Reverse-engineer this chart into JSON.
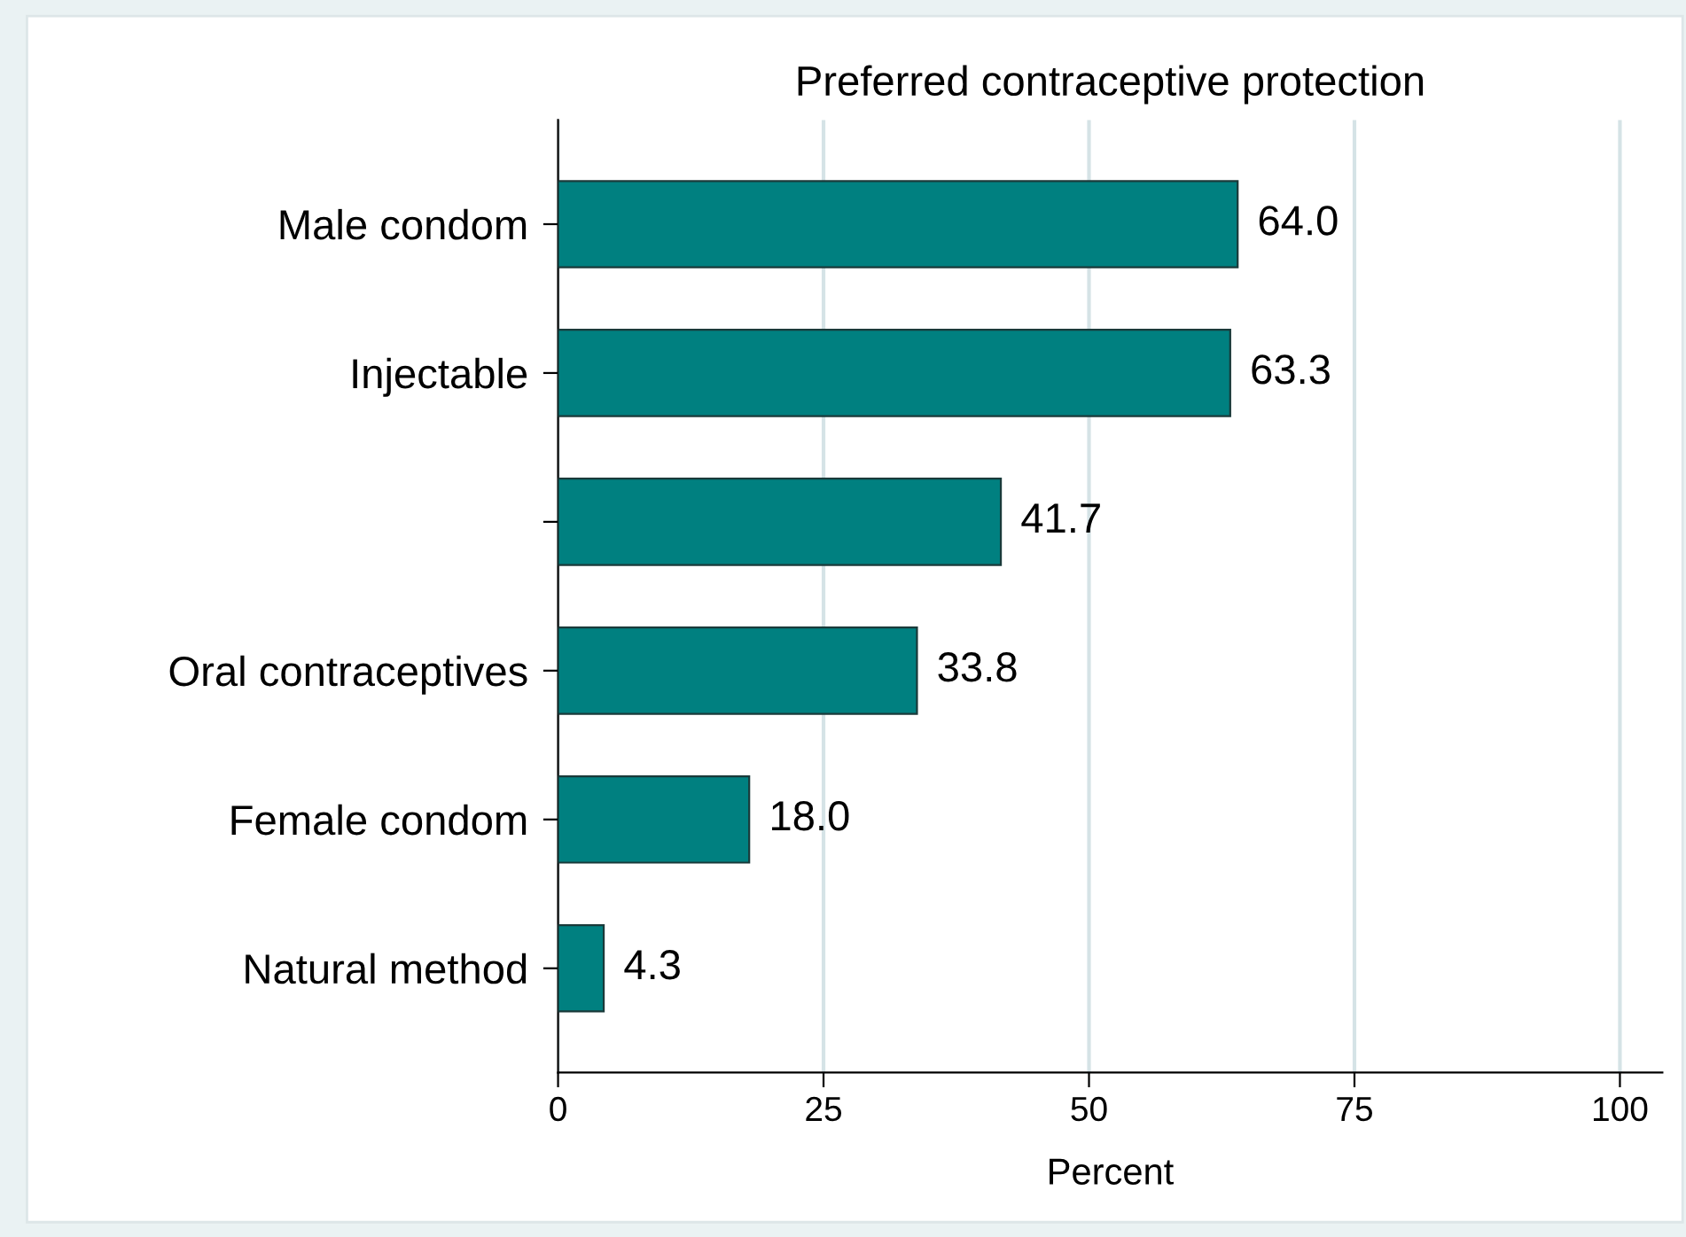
{
  "chart_data": {
    "type": "bar",
    "orientation": "horizontal",
    "title": "Preferred contraceptive protection",
    "xlabel": "Percent",
    "categories": [
      "Male condom",
      "Injectable",
      null,
      "Oral contraceptives",
      "Female condom",
      "Natural method"
    ],
    "values": [
      64.0,
      63.3,
      41.7,
      33.8,
      18.0,
      4.3
    ],
    "color": "#008080",
    "xlim": [
      0,
      104
    ],
    "xticks": [
      0,
      25,
      50,
      75,
      100
    ],
    "grid": "x",
    "value_labels": [
      "64.0",
      "63.3",
      "41.7",
      "33.8",
      "18.0",
      "4.3"
    ],
    "legend": false
  }
}
